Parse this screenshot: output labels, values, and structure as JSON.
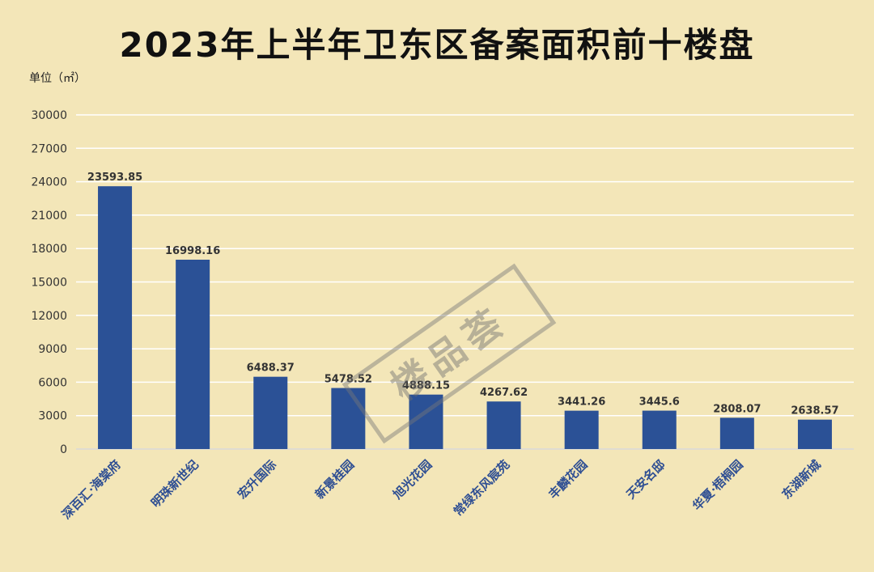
{
  "title": "2023年上半年卫东区备案面积前十楼盘",
  "unit_label": "单位（㎡）",
  "watermark_text": "楼品荟",
  "colors": {
    "background": "#f3e6b8",
    "bar": "#2b5196",
    "grid": "#ffffff",
    "category_label": "#2f4f93"
  },
  "chart_data": {
    "type": "bar",
    "title": "2023年上半年卫东区备案面积前十楼盘",
    "ylabel": "单位（㎡）",
    "xlabel": "",
    "categories": [
      "深百汇·海棠府",
      "明珠新世纪",
      "宏升国际",
      "新景桂园",
      "旭光花园",
      "常绿东风宸苑",
      "丰麟花园",
      "天安名邸",
      "华夏·梧桐园",
      "东湖新城"
    ],
    "values": [
      23593.85,
      16998.16,
      6488.37,
      5478.52,
      4888.15,
      4267.62,
      3441.26,
      3445.6,
      2808.07,
      2638.57
    ],
    "data_labels": [
      "23593.85",
      "16998.16",
      "6488.37",
      "5478.52",
      "4888.15",
      "4267.62",
      "3441.26",
      "3445.6",
      "2808.07",
      "2638.57"
    ],
    "yticks": [
      0,
      3000,
      6000,
      9000,
      12000,
      15000,
      18000,
      21000,
      24000,
      27000,
      30000
    ],
    "ylim": [
      0,
      30000
    ],
    "grid": true,
    "legend": "none"
  }
}
